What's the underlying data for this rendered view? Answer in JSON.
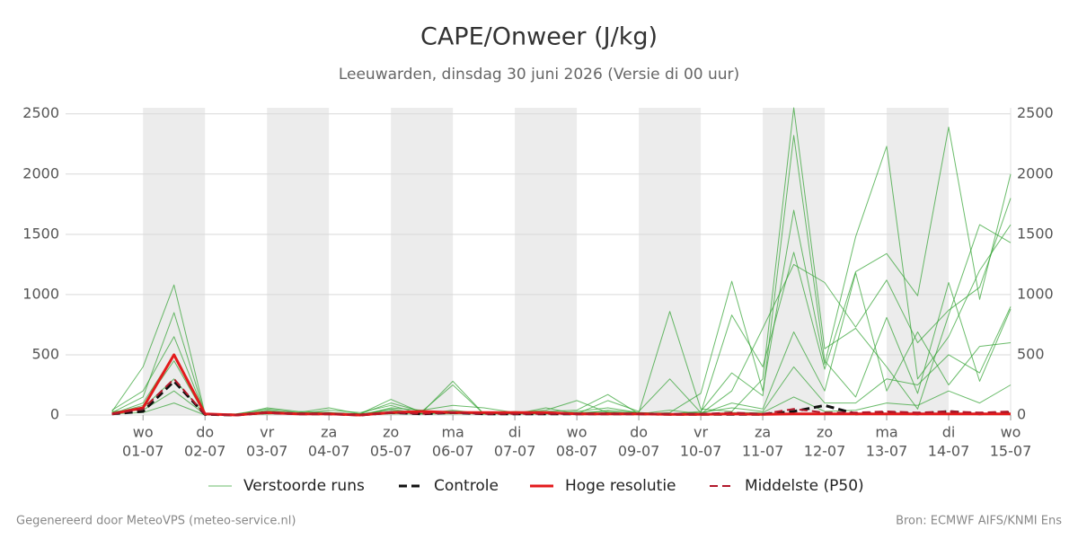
{
  "chart_data": {
    "type": "line",
    "title": "CAPE/Onweer (J/kg)",
    "subtitle": "Leeuwarden, dinsdag 30 juni 2026 (Versie di 00 uur)",
    "footer_left": "Gegenereerd door MeteoVPS (meteo-service.nl)",
    "footer_right": "Bron: ECMWF AIFS/KNMI Ens",
    "xlim": [
      -0.25,
      15
    ],
    "xticks": [
      {
        "value": 1,
        "label": "01-07"
      },
      {
        "value": 2,
        "label": "02-07"
      },
      {
        "value": 3,
        "label": "03-07"
      },
      {
        "value": 4,
        "label": "04-07"
      },
      {
        "value": 5,
        "label": "05-07"
      },
      {
        "value": 6,
        "label": "06-07"
      },
      {
        "value": 7,
        "label": "07-07"
      },
      {
        "value": 8,
        "label": "08-07"
      },
      {
        "value": 9,
        "label": "09-07"
      },
      {
        "value": 10,
        "label": "10-07"
      },
      {
        "value": 11,
        "label": "11-07"
      },
      {
        "value": 12,
        "label": "12-07"
      },
      {
        "value": 13,
        "label": "13-07"
      },
      {
        "value": 14,
        "label": "14-07"
      },
      {
        "value": 15,
        "label": "15-07"
      }
    ],
    "xtick_days": [
      "wo",
      "do",
      "vr",
      "za",
      "zo",
      "ma",
      "di",
      "wo",
      "do",
      "vr",
      "za",
      "zo",
      "ma",
      "di",
      "wo"
    ],
    "ylim": [
      0,
      2550
    ],
    "yticks": [
      0,
      500,
      1000,
      1500,
      2000,
      2500
    ],
    "grid": true,
    "x": [
      0.5,
      1,
      1.5,
      2,
      2.5,
      3,
      3.5,
      4,
      4.5,
      5,
      5.5,
      6,
      6.5,
      7,
      7.5,
      8,
      8.5,
      9,
      9.5,
      10,
      10.5,
      11,
      11.5,
      12,
      12.5,
      13,
      13.5,
      14,
      14.5,
      15
    ],
    "series": [
      {
        "name": "Verstoorde runs",
        "color": "#2ca02c",
        "dash": false,
        "width": 1,
        "members": [
          [
            20,
            150,
            850,
            5,
            0,
            30,
            20,
            10,
            0,
            50,
            10,
            30,
            20,
            10,
            60,
            10,
            40,
            20,
            860,
            50,
            30,
            300,
            2550,
            550,
            720,
            400,
            50,
            830,
            1580,
            1430
          ],
          [
            30,
            400,
            1080,
            10,
            0,
            40,
            10,
            20,
            10,
            130,
            20,
            280,
            10,
            20,
            30,
            40,
            170,
            10,
            20,
            180,
            1110,
            200,
            1700,
            420,
            1480,
            2230,
            300,
            650,
            1200,
            1580
          ],
          [
            10,
            100,
            500,
            0,
            10,
            50,
            20,
            60,
            10,
            100,
            30,
            250,
            10,
            20,
            20,
            10,
            120,
            30,
            300,
            20,
            830,
            400,
            1350,
            380,
            1190,
            1340,
            990,
            2390,
            960,
            2000
          ],
          [
            40,
            200,
            650,
            10,
            0,
            60,
            30,
            20,
            0,
            60,
            40,
            80,
            60,
            20,
            40,
            120,
            20,
            10,
            40,
            10,
            200,
            720,
            1250,
            1100,
            730,
            1120,
            600,
            870,
            1060,
            1800
          ],
          [
            20,
            60,
            300,
            0,
            0,
            20,
            10,
            40,
            20,
            80,
            10,
            40,
            10,
            30,
            10,
            30,
            60,
            20,
            10,
            30,
            350,
            160,
            2320,
            450,
            150,
            810,
            180,
            1100,
            280,
            880
          ],
          [
            10,
            80,
            450,
            0,
            10,
            30,
            10,
            20,
            10,
            40,
            10,
            30,
            10,
            10,
            10,
            20,
            30,
            10,
            10,
            10,
            100,
            50,
            690,
            200,
            1180,
            200,
            690,
            250,
            570,
            600
          ],
          [
            30,
            40,
            200,
            5,
            0,
            10,
            20,
            10,
            10,
            20,
            20,
            20,
            10,
            20,
            20,
            10,
            20,
            20,
            10,
            20,
            60,
            30,
            400,
            100,
            100,
            300,
            250,
            500,
            350,
            900
          ],
          [
            10,
            20,
            100,
            0,
            0,
            10,
            10,
            10,
            0,
            10,
            10,
            10,
            10,
            10,
            10,
            10,
            10,
            10,
            10,
            10,
            20,
            20,
            150,
            30,
            40,
            100,
            80,
            200,
            100,
            250
          ]
        ]
      },
      {
        "name": "Controle",
        "color": "#111111",
        "dash": true,
        "width": 3,
        "values": [
          10,
          30,
          280,
          5,
          0,
          20,
          10,
          10,
          0,
          20,
          10,
          20,
          10,
          10,
          10,
          10,
          10,
          10,
          5,
          5,
          5,
          5,
          30,
          80,
          10,
          20,
          10,
          30,
          10,
          20
        ]
      },
      {
        "name": "Hoge resolutie",
        "color": "#e31a1c",
        "dash": false,
        "width": 3,
        "values": [
          10,
          60,
          500,
          10,
          0,
          20,
          10,
          10,
          0,
          20,
          30,
          20,
          20,
          20,
          20,
          10,
          10,
          10,
          5,
          5,
          10,
          5,
          10,
          10,
          10,
          10,
          10,
          10,
          10,
          10
        ]
      },
      {
        "name": "Middelste (P50)",
        "color": "#b2182b",
        "dash": true,
        "width": 2,
        "values": [
          10,
          50,
          300,
          5,
          0,
          20,
          10,
          10,
          0,
          20,
          10,
          20,
          10,
          10,
          10,
          10,
          10,
          10,
          10,
          10,
          20,
          10,
          50,
          20,
          20,
          30,
          20,
          30,
          20,
          30
        ]
      }
    ]
  }
}
